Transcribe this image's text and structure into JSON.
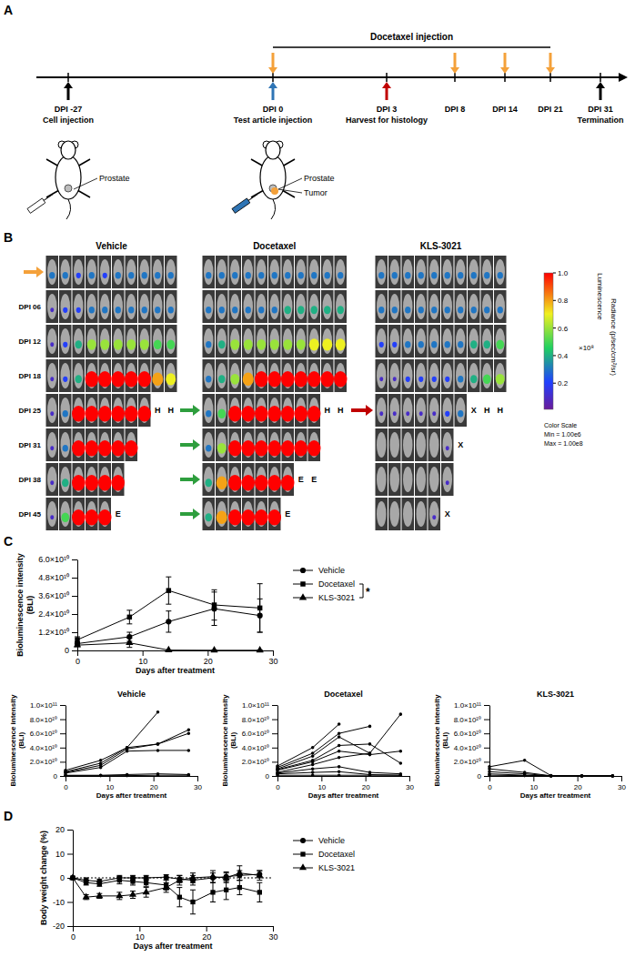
{
  "panels": [
    "A",
    "B",
    "C",
    "D"
  ],
  "timeline": {
    "title": "Docetaxel injection",
    "events": [
      {
        "label": "DPI -27",
        "note": "Cell injection",
        "arrow_color": "#000000"
      },
      {
        "label": "DPI 0",
        "note": "Test article injection",
        "arrow_color": "#2f75b5",
        "docetaxel": true
      },
      {
        "label": "DPI 3",
        "note": "Harvest for histology",
        "arrow_color": "#c00000"
      },
      {
        "label": "DPI 8",
        "docetaxel": true
      },
      {
        "label": "DPI 14",
        "docetaxel": true
      },
      {
        "label": "DPI 21",
        "docetaxel": true
      },
      {
        "label": "DPI 31",
        "note": "Termination",
        "arrow_color": "#000000"
      }
    ],
    "icons": [
      {
        "labels": [
          "Prostate"
        ]
      },
      {
        "labels": [
          "Prostate",
          "Tumor"
        ]
      }
    ]
  },
  "imaging": {
    "row_labels": [
      null,
      "DPI 06",
      "DPI 12",
      "DPI 18",
      "DPI 25",
      "DPI 31",
      "DPI 38",
      "DPI 45"
    ],
    "groups": [
      {
        "name": "Vehicle",
        "rows": [
          [
            0.3,
            0.3,
            0.2,
            0.3,
            0.2,
            0.3,
            0.3,
            0.3,
            0.3,
            0.3
          ],
          [
            0.1,
            0.2,
            0.2,
            0.3,
            0.3,
            0.3,
            0.3,
            0.3,
            0.3,
            0.3
          ],
          [
            0.1,
            0.2,
            0.4,
            0.6,
            0.6,
            0.6,
            0.6,
            0.6,
            0.5,
            0.5
          ],
          [
            0.1,
            0.2,
            0.4,
            1,
            1,
            1,
            1,
            1,
            0.8,
            0.7
          ],
          [
            0.1,
            0.3,
            1,
            1,
            1,
            1,
            1,
            1,
            "H",
            "H"
          ],
          [
            0.1,
            0.3,
            1,
            1,
            1,
            1,
            1
          ],
          [
            0.1,
            0.4,
            1,
            1,
            1,
            1
          ],
          [
            0.1,
            0.5,
            1,
            1,
            1,
            "E"
          ]
        ]
      },
      {
        "name": "Docetaxel",
        "rows": [
          [
            0.3,
            0.3,
            0.3,
            0.3,
            0.3,
            0.3,
            0.3,
            0.3,
            0.3,
            0.3,
            0.3
          ],
          [
            0.3,
            0.3,
            0.3,
            0.3,
            0.3,
            0.3,
            0.4,
            0.4,
            0.4,
            0.4,
            0.4
          ],
          [
            0.3,
            0.4,
            0.6,
            0.6,
            0.6,
            0.6,
            0.6,
            0.6,
            0.7,
            0.7,
            0.7
          ],
          [
            0.3,
            0.4,
            0.6,
            0.8,
            1,
            1,
            1,
            1,
            1,
            1,
            1
          ],
          [
            0.3,
            0.5,
            1,
            1,
            1,
            1,
            1,
            1,
            1,
            "H",
            "H"
          ],
          [
            0.3,
            0.6,
            1,
            1,
            1,
            1,
            1,
            1,
            1
          ],
          [
            0.4,
            0.8,
            1,
            1,
            1,
            1,
            1,
            "E",
            "E"
          ],
          [
            0.4,
            0.8,
            1,
            1,
            1,
            1,
            "E"
          ]
        ]
      },
      {
        "name": "KLS-3021",
        "rows": [
          [
            0.3,
            0.3,
            0.3,
            0.3,
            0.3,
            0.3,
            0.3,
            0.3,
            0.3,
            0.3
          ],
          [
            0.3,
            0.3,
            0.3,
            0.3,
            0.3,
            0.3,
            0.3,
            0.3,
            0.3,
            0.3
          ],
          [
            0.2,
            0.2,
            0.3,
            0.3,
            0.3,
            0.3,
            0.3,
            0.4,
            0.4,
            0.5
          ],
          [
            0.1,
            0.1,
            0.2,
            0.2,
            0.2,
            0.2,
            0.3,
            0.4,
            0.5,
            0.6
          ],
          [
            0.1,
            0.1,
            0.1,
            0.1,
            0.1,
            0.2,
            0.3,
            "X",
            "H",
            "H"
          ],
          [
            0,
            0,
            0,
            0,
            0,
            0.1,
            "X"
          ],
          [
            0,
            0,
            0,
            0,
            0,
            0.1
          ],
          [
            0,
            0,
            0,
            0,
            0.1,
            "X"
          ]
        ]
      }
    ],
    "colorbar": {
      "title": "Luminescence",
      "range": [
        0.01,
        1
      ],
      "ticks": [
        {
          "value": 1,
          "label": "1.0"
        },
        0.8,
        0.6,
        0.4,
        0.2
      ],
      "unit": "×10⁸",
      "label": "Radiance (p/sec/cm²/sr)",
      "notes": [
        "Color Scale",
        "Min = 1.00e6",
        "Max = 1.00e8"
      ]
    }
  },
  "chart_data": [
    {
      "type": "line",
      "x": [
        0,
        8,
        14,
        21,
        28
      ],
      "xlim": [
        0,
        30
      ],
      "xticks": [
        0,
        10,
        20,
        30
      ],
      "ylim": [
        0,
        60000000000.0
      ],
      "yticks": [
        0,
        {
          "value": 12000000000.0,
          "label": "1.2×10¹⁰"
        },
        {
          "value": 24000000000.0,
          "label": "2.4×10¹⁰"
        },
        {
          "value": 36000000000.0,
          "label": "3.6×10¹⁰"
        },
        {
          "value": 48000000000.0,
          "label": "4.8×10¹⁰"
        },
        {
          "value": 60000000000.0,
          "label": "6.0×10¹⁰"
        }
      ],
      "x_label": "Days after treatment",
      "y_label": "Bioluminescence intensity (BLI)",
      "legend": "right",
      "series": [
        {
          "name": "Vehicle",
          "color": "#000000",
          "marker": "circle",
          "values": [
            4500000000.0,
            9000000000.0,
            19000000000.0,
            27500000000.0,
            23000000000.0
          ],
          "errors": [
            1000000000.0,
            3000000000.0,
            7000000000.0,
            11000000000.0,
            11000000000.0
          ]
        },
        {
          "name": "Docetaxel",
          "color": "#000000",
          "marker": "square",
          "values": [
            7000000000.0,
            22000000000.0,
            39500000000.0,
            30000000000.0,
            28000000000.0
          ],
          "errors": [
            2000000000.0,
            4500000000.0,
            9000000000.0,
            10000000000.0,
            16000000000.0
          ]
        },
        {
          "name": "KLS-3021",
          "color": "#000000",
          "marker": "triangle",
          "values": [
            3500000000.0,
            5000000000.0,
            200000000.0,
            100000000.0,
            100000000.0
          ],
          "errors": [
            1000000000.0,
            3000000000.0,
            0,
            0,
            0
          ]
        }
      ],
      "annotations": [
        {
          "text": "*",
          "between": [
            "Docetaxel",
            "KLS-3021"
          ]
        }
      ]
    },
    {
      "type": "line",
      "title": "Vehicle",
      "x": [
        0,
        8,
        14,
        21,
        28
      ],
      "xlim": [
        0,
        30
      ],
      "xticks": [
        0,
        10,
        20,
        30
      ],
      "ylim": [
        0,
        100000000000.0
      ],
      "yticks": [
        0,
        {
          "value": 20000000000.0,
          "label": "2.0×10¹⁰"
        },
        {
          "value": 40000000000.0,
          "label": "4.0×10¹⁰"
        },
        {
          "value": 60000000000.0,
          "label": "6.0×10¹⁰"
        },
        {
          "value": 80000000000.0,
          "label": "8.0×10¹⁰"
        },
        {
          "value": 100000000000.0,
          "label": "1.0×10¹¹"
        }
      ],
      "x_label": "Days after treatment",
      "y_label": "Bioluminescence intensity (BLI)",
      "series": [
        {
          "color": "#000000",
          "marker": "circle",
          "values": [
            8000000000.0,
            22000000000.0,
            40000000000.0,
            90000000000.0,
            null
          ]
        },
        {
          "color": "#000000",
          "marker": "circle",
          "values": [
            6000000000.0,
            18000000000.0,
            40000000000.0,
            45000000000.0,
            65000000000.0
          ]
        },
        {
          "color": "#000000",
          "marker": "circle",
          "values": [
            5000000000.0,
            15000000000.0,
            38000000000.0,
            45000000000.0,
            60000000000.0
          ]
        },
        {
          "color": "#000000",
          "marker": "circle",
          "values": [
            4000000000.0,
            12000000000.0,
            35000000000.0,
            36000000000.0,
            36000000000.0
          ]
        },
        {
          "color": "#000000",
          "marker": "circle",
          "values": [
            1000000000.0,
            1000000000.0,
            2000000000.0,
            3000000000.0,
            2000000000.0
          ]
        },
        {
          "color": "#000000",
          "marker": "circle",
          "values": [
            500000000.0,
            500000000.0,
            500000000.0,
            1000000000.0,
            1000000000.0
          ]
        }
      ]
    },
    {
      "type": "line",
      "title": "Docetaxel",
      "x": [
        0,
        8,
        14,
        21,
        28
      ],
      "xlim": [
        0,
        30
      ],
      "xticks": [
        0,
        10,
        20,
        30
      ],
      "ylim": [
        0,
        100000000000.0
      ],
      "yticks": [
        0,
        {
          "value": 20000000000.0,
          "label": "2.0×10¹⁰"
        },
        {
          "value": 40000000000.0,
          "label": "4.0×10¹⁰"
        },
        {
          "value": 60000000000.0,
          "label": "6.0×10¹⁰"
        },
        {
          "value": 80000000000.0,
          "label": "8.0×10¹⁰"
        },
        {
          "value": 100000000000.0,
          "label": "1.0×10¹¹"
        }
      ],
      "x_label": "Days after treatment",
      "y_label": "Bioluminescence intensity (BLI)",
      "series": [
        {
          "color": "#000000",
          "marker": "circle",
          "values": [
            14000000000.0,
            40000000000.0,
            73000000000.0,
            null,
            null
          ]
        },
        {
          "color": "#000000",
          "marker": "circle",
          "values": [
            12000000000.0,
            32000000000.0,
            60000000000.0,
            70000000000.0,
            null
          ]
        },
        {
          "color": "#000000",
          "marker": "circle",
          "values": [
            10000000000.0,
            28000000000.0,
            55000000000.0,
            32000000000.0,
            87000000000.0
          ]
        },
        {
          "color": "#000000",
          "marker": "circle",
          "values": [
            9000000000.0,
            22000000000.0,
            43000000000.0,
            45000000000.0,
            18000000000.0
          ]
        },
        {
          "color": "#000000",
          "marker": "circle",
          "values": [
            8000000000.0,
            20000000000.0,
            35000000000.0,
            30000000000.0,
            35000000000.0
          ]
        },
        {
          "color": "#000000",
          "marker": "circle",
          "values": [
            5000000000.0,
            16000000000.0,
            26000000000.0,
            32000000000.0,
            null
          ]
        },
        {
          "color": "#000000",
          "marker": "circle",
          "values": [
            4000000000.0,
            10000000000.0,
            13000000000.0,
            5000000000.0,
            3000000000.0
          ]
        },
        {
          "color": "#000000",
          "marker": "circle",
          "values": [
            3000000000.0,
            5000000000.0,
            6000000000.0,
            2000000000.0,
            1000000000.0
          ]
        },
        {
          "color": "#000000",
          "marker": "circle",
          "values": [
            1000000000.0,
            1000000000.0,
            1000000000.0,
            1000000000.0,
            1000000000.0
          ]
        }
      ]
    },
    {
      "type": "line",
      "title": "KLS-3021",
      "x": [
        0,
        8,
        14,
        21,
        28
      ],
      "xlim": [
        0,
        30
      ],
      "xticks": [
        0,
        10,
        20,
        30
      ],
      "ylim": [
        0,
        100000000000.0
      ],
      "yticks": [
        0,
        {
          "value": 20000000000.0,
          "label": "2.0×10¹⁰"
        },
        {
          "value": 40000000000.0,
          "label": "4.0×10¹⁰"
        },
        {
          "value": 60000000000.0,
          "label": "6.0×10¹⁰"
        },
        {
          "value": 80000000000.0,
          "label": "8.0×10¹⁰"
        },
        {
          "value": 100000000000.0,
          "label": "1.0×10¹¹"
        }
      ],
      "x_label": "Days after treatment",
      "y_label": "Bioluminescence intensity (BLI)",
      "series": [
        {
          "color": "#000000",
          "marker": "circle",
          "values": [
            13000000000.0,
            22000000000.0,
            500000000.0,
            200000000.0,
            200000000.0
          ]
        },
        {
          "color": "#000000",
          "marker": "circle",
          "values": [
            10000000000.0,
            5000000000.0,
            200000000.0,
            100000000.0,
            100000000.0
          ]
        },
        {
          "color": "#000000",
          "marker": "circle",
          "values": [
            6000000000.0,
            3000000000.0,
            200000000.0,
            100000000.0,
            100000000.0
          ]
        },
        {
          "color": "#000000",
          "marker": "circle",
          "values": [
            3000000000.0,
            1000000000.0,
            100000000.0,
            100000000.0,
            100000000.0
          ]
        },
        {
          "color": "#000000",
          "marker": "circle",
          "values": [
            1000000000.0,
            500000000.0,
            100000000.0,
            100000000.0,
            100000000.0
          ]
        }
      ]
    },
    {
      "type": "line",
      "x": [
        0,
        2,
        4,
        7,
        9,
        11,
        14,
        16,
        18,
        21,
        23,
        25,
        28
      ],
      "xlim": [
        0,
        30
      ],
      "xticks": [
        0,
        10,
        20,
        30
      ],
      "ylim": [
        -20,
        20
      ],
      "yticks": [
        -20,
        -10,
        0,
        10,
        20
      ],
      "hline": 0,
      "x_label": "Days after treatment",
      "y_label": "Body weight change (%)",
      "legend": "right",
      "series": [
        {
          "name": "Vehicle",
          "color": "#000000",
          "marker": "circle",
          "values": [
            0,
            -1,
            -1.5,
            0,
            0,
            0,
            0.3,
            -0.5,
            -1,
            0,
            0.5,
            1,
            1.5
          ],
          "errors": [
            0,
            1,
            1,
            1,
            1,
            1,
            1,
            1.5,
            2,
            2,
            2,
            2,
            1.5
          ]
        },
        {
          "name": "Docetaxel",
          "color": "#000000",
          "marker": "square",
          "values": [
            0,
            -2,
            -2.5,
            -1,
            -1.5,
            -2,
            -3,
            -8,
            -10,
            -6,
            -5,
            -4,
            -6
          ],
          "errors": [
            0,
            1,
            1,
            1.5,
            1.5,
            1.5,
            2,
            4,
            5,
            4,
            4,
            3,
            4
          ]
        },
        {
          "name": "KLS-3021",
          "color": "#000000",
          "marker": "triangle",
          "values": [
            0,
            -8,
            -7.5,
            -7.5,
            -7,
            -6,
            -4,
            -1,
            0,
            0.5,
            0,
            2,
            1
          ],
          "errors": [
            0,
            1,
            1,
            1.5,
            1.5,
            2,
            2,
            2,
            2,
            2.5,
            2,
            3,
            2
          ]
        }
      ]
    }
  ]
}
